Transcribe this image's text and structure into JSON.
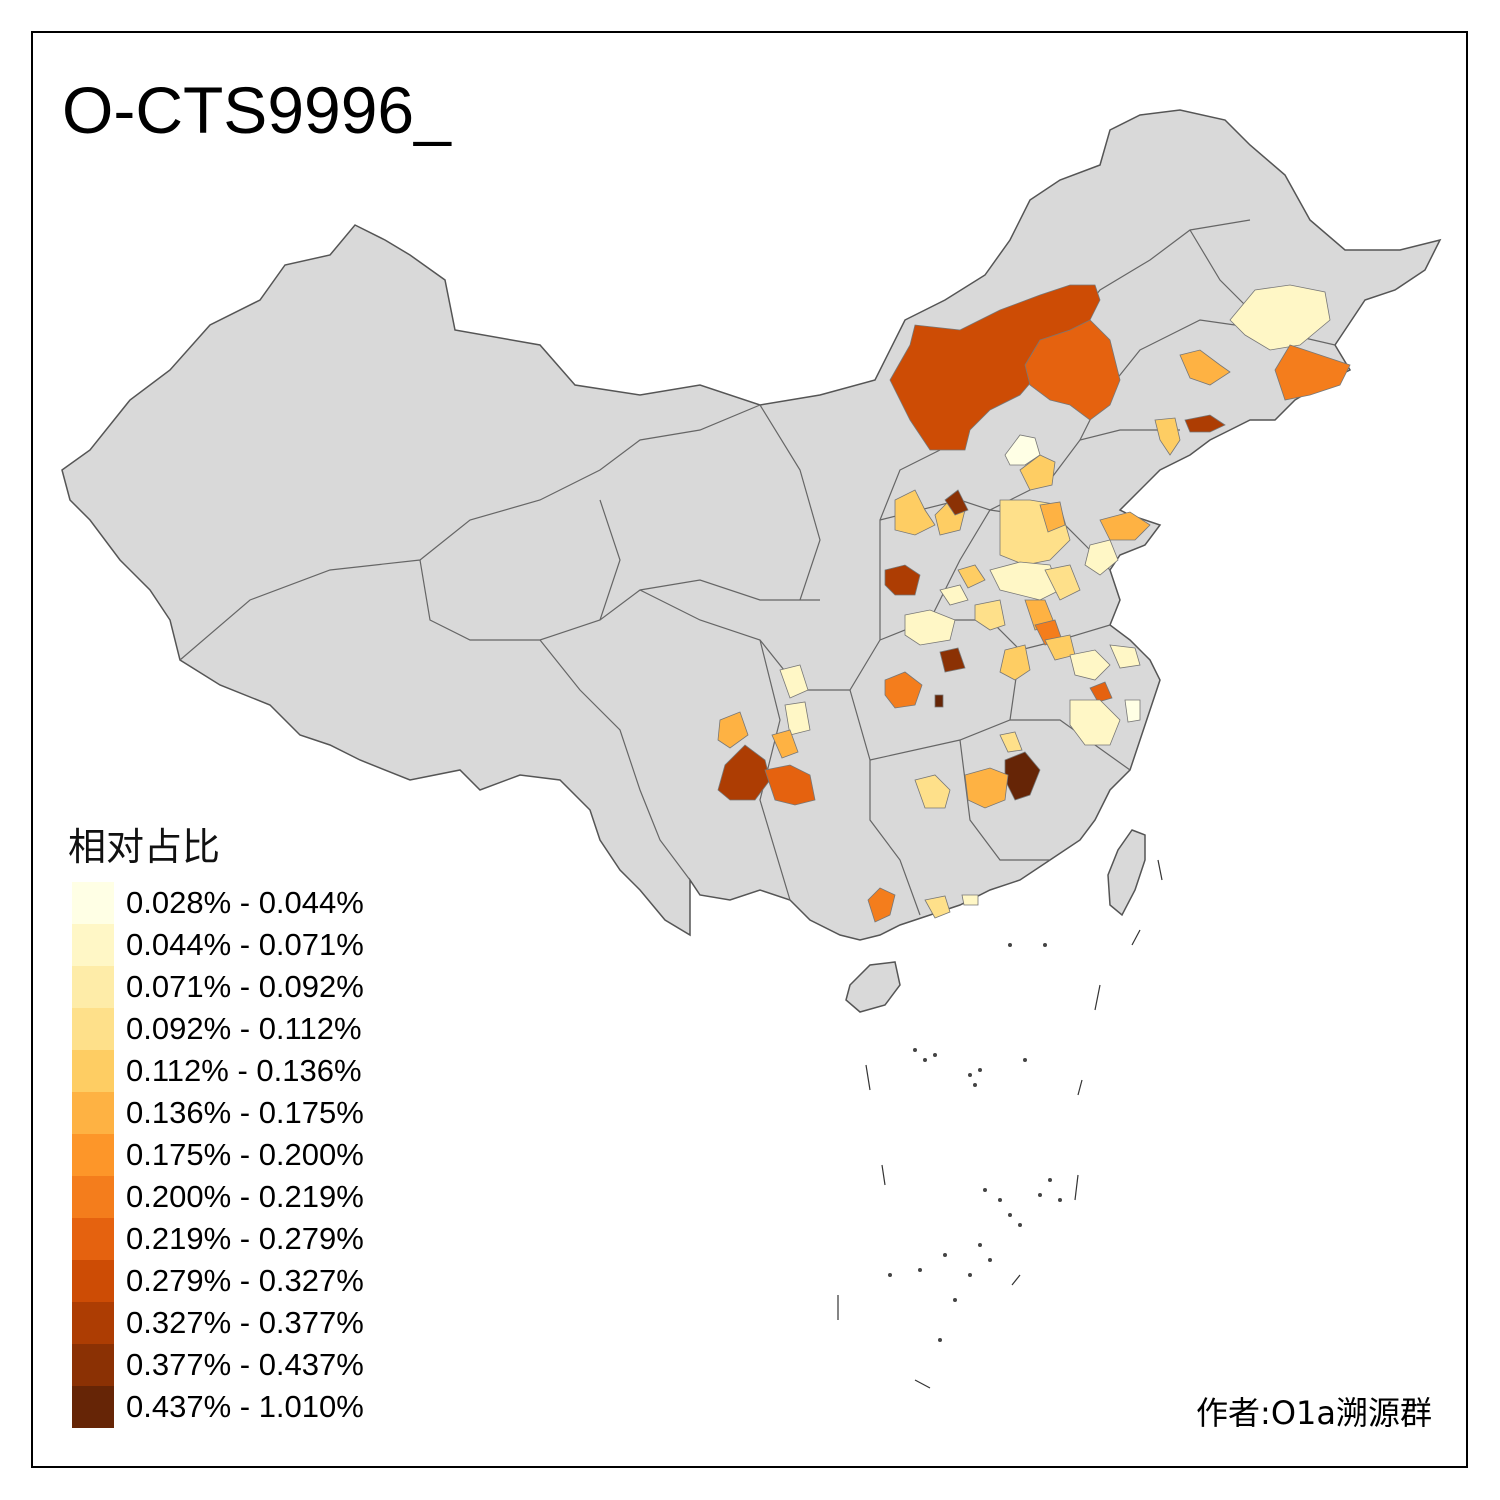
{
  "title": "O-CTS9996_",
  "legend": {
    "title": "相对占比",
    "bins": [
      {
        "label": "0.028% - 0.044%",
        "color": "#FFFFE5"
      },
      {
        "label": "0.044% - 0.071%",
        "color": "#FFF7C6"
      },
      {
        "label": "0.071% - 0.092%",
        "color": "#FEECA8"
      },
      {
        "label": "0.092% - 0.112%",
        "color": "#FEE08A"
      },
      {
        "label": "0.112% - 0.136%",
        "color": "#FECD63"
      },
      {
        "label": "0.136% - 0.175%",
        "color": "#FEB243"
      },
      {
        "label": "0.175% - 0.200%",
        "color": "#FD9629"
      },
      {
        "label": "0.200% - 0.219%",
        "color": "#F47D1C"
      },
      {
        "label": "0.219% - 0.279%",
        "color": "#E5620F"
      },
      {
        "label": "0.279% - 0.327%",
        "color": "#CD4C05"
      },
      {
        "label": "0.327% - 0.377%",
        "color": "#AD3D03"
      },
      {
        "label": "0.377% - 0.437%",
        "color": "#8B3104"
      },
      {
        "label": "0.437% - 1.010%",
        "color": "#662506"
      }
    ]
  },
  "credit": "作者:O1a溯源群",
  "colors": {
    "land": "#D9D9D9",
    "border": "#555555",
    "frame": "#000000"
  }
}
